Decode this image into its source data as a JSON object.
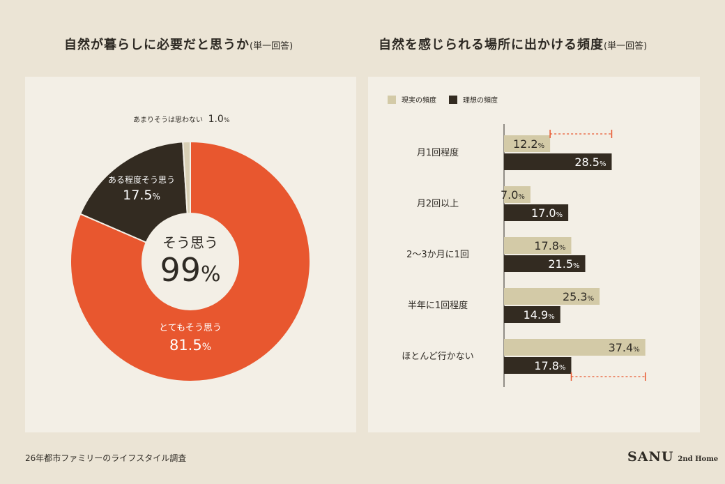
{
  "left_title": {
    "main": "自然が暮らしに必要だと思うか",
    "note": "(単一回答)"
  },
  "right_title": {
    "main": "自然を感じられる場所に出かける頻度",
    "note": "(単一回答)"
  },
  "footer": "26年都市ファミリーのライフスタイル調査",
  "logo": {
    "brand": "SANU",
    "sub": "2nd Home"
  },
  "colors": {
    "strong": "#e8572f",
    "mid": "#332b21",
    "weak": "#d8cfb5",
    "reality": "#d3caa7",
    "ideal": "#332b21",
    "diff": "#e8572f"
  },
  "chart_data": [
    {
      "type": "pie",
      "variant": "donut",
      "center_label": "そう思う",
      "center_value": "99%",
      "slices": [
        {
          "label": "とてもそう思う",
          "value": 81.5,
          "display": "81.5%"
        },
        {
          "label": "ある程度そう思う",
          "value": 17.5,
          "display": "17.5%"
        },
        {
          "label": "あまりそうは思わない",
          "value": 1.0,
          "display": "1.0%"
        }
      ]
    },
    {
      "type": "bar",
      "orientation": "horizontal",
      "categories": [
        "月1回程度",
        "月2回以上",
        "2〜3か月に1回",
        "半年に1回程度",
        "ほとんど行かない"
      ],
      "series": [
        {
          "name": "現実の頻度",
          "values": [
            12.2,
            7.0,
            17.8,
            25.3,
            37.4
          ],
          "display": [
            "12.2%",
            "7.0%",
            "17.8%",
            "25.3%",
            "37.4%"
          ]
        },
        {
          "name": "理想の頻度",
          "values": [
            28.5,
            17.0,
            21.5,
            14.9,
            17.8
          ],
          "display": [
            "28.5%",
            "17.0%",
            "21.5%",
            "14.9%",
            "17.8%"
          ]
        }
      ],
      "legend": "top-left",
      "xlim": [
        0,
        40
      ]
    }
  ]
}
